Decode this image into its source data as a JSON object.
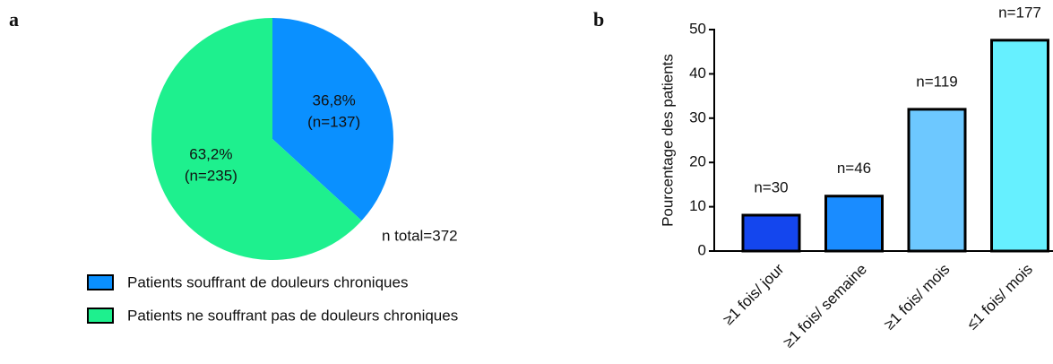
{
  "chart_data": [
    {
      "type": "pie",
      "panel": "a",
      "categories": [
        "Patients souffrant de douleurs chroniques",
        "Patients ne souffrant pas de douleurs chroniques"
      ],
      "values": [
        36.8,
        63.2
      ],
      "value_labels": [
        "36,8%",
        "63,2%"
      ],
      "count_labels": [
        "(n=137)",
        "(n=235)"
      ],
      "colors": [
        "#0a90ff",
        "#1ef08e"
      ],
      "annotation": "n total=372"
    },
    {
      "type": "bar",
      "panel": "b",
      "ylabel": "Pourcentage  des patients",
      "categories": [
        "≥1 fois/ jour",
        "≥1 fois/ semaine",
        "≥1 fois/ mois",
        "≤1 fois/ mois"
      ],
      "values": [
        8.1,
        12.4,
        32.0,
        47.6
      ],
      "count_labels": [
        "n=30",
        "n=46",
        "n=119",
        "n=177"
      ],
      "colors": [
        "#1446ee",
        "#1a8cff",
        "#6dc8ff",
        "#66f0ff"
      ],
      "ylim": [
        0,
        50
      ],
      "yticks": [
        0,
        10,
        20,
        30,
        40,
        50
      ]
    }
  ]
}
